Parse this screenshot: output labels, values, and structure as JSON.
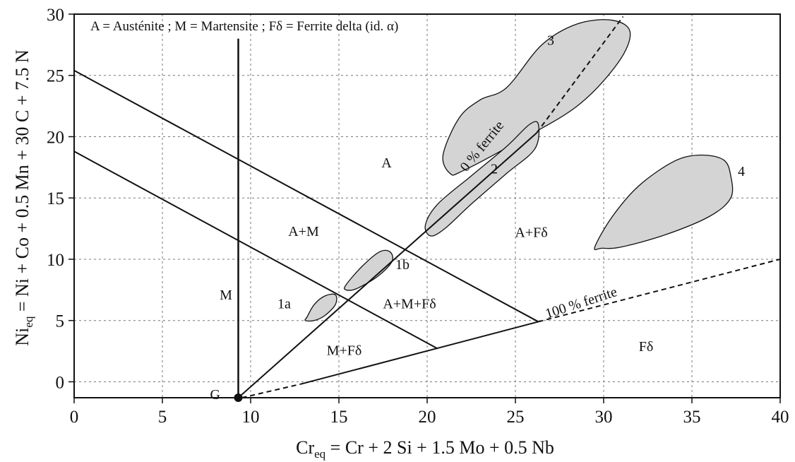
{
  "chart_data": {
    "type": "diagram",
    "title": "",
    "legend_text": "A = Austénite ; M = Martensite ; Fδ = Ferrite delta (id. α)",
    "xlabel": {
      "main": "Cr",
      "sub": "eq",
      "rest": " = Cr + 2 Si + 1.5 Mo + 0.5 Nb"
    },
    "ylabel": {
      "main": "Ni",
      "sub": "eq",
      "rest": " = Ni + Co + 0.5 Mn + 30 C + 7.5 N"
    },
    "xlim": [
      0,
      40
    ],
    "ylim": [
      -1.3,
      30
    ],
    "xticks": [
      0,
      5,
      10,
      15,
      20,
      25,
      30,
      35,
      40
    ],
    "yticks": [
      0,
      5,
      10,
      15,
      20,
      25,
      30
    ],
    "grid": true,
    "boundary_lines": [
      {
        "name": "martensite-limit",
        "style": "solid",
        "points": [
          [
            9.3,
            -1.3
          ],
          [
            9.3,
            28
          ]
        ]
      },
      {
        "name": "upper-diagonal",
        "style": "solid",
        "points": [
          [
            0,
            25.4
          ],
          [
            26.3,
            4.9
          ]
        ]
      },
      {
        "name": "lower-diagonal",
        "style": "solid",
        "points": [
          [
            0,
            18.8
          ],
          [
            20.6,
            2.7
          ]
        ]
      },
      {
        "name": "zero-ferrite",
        "style": "solid",
        "points": [
          [
            9.3,
            -1.3
          ],
          [
            26.2,
            20.3
          ]
        ]
      },
      {
        "name": "zero-ferrite-ext",
        "style": "dashed",
        "points": [
          [
            26.2,
            20.3
          ],
          [
            31.1,
            29.8
          ]
        ]
      },
      {
        "name": "hundred-ferrite",
        "style": "solid",
        "points": [
          [
            12.8,
            -0.2
          ],
          [
            26.3,
            4.9
          ]
        ]
      },
      {
        "name": "hundred-ferrite-ext",
        "style": "dashed",
        "points": [
          [
            26.3,
            4.9
          ],
          [
            40,
            10
          ]
        ]
      },
      {
        "name": "hundred-ferrite-low",
        "style": "dashed",
        "points": [
          [
            9.5,
            -1.3
          ],
          [
            12.8,
            -0.2
          ]
        ]
      }
    ],
    "point": {
      "label": "G",
      "x": 9.3,
      "y": -1.3
    },
    "regions": [
      {
        "label": "A",
        "x": 17.7,
        "y": 17.5
      },
      {
        "label": "A+M",
        "x": 13.0,
        "y": 11.9
      },
      {
        "label": "M",
        "x": 8.6,
        "y": 6.7
      },
      {
        "label": "A+M+Fδ",
        "x": 19.0,
        "y": 6.0
      },
      {
        "label": "M+Fδ",
        "x": 15.3,
        "y": 2.2
      },
      {
        "label": "A+Fδ",
        "x": 25.9,
        "y": 11.8
      },
      {
        "label": "Fδ",
        "x": 32.4,
        "y": 2.5
      }
    ],
    "line_labels": [
      {
        "label": "0 % ferrite",
        "x": 23.3,
        "y": 19.0,
        "angle_deg": -51
      },
      {
        "label": "100 % ferrite",
        "x": 28.8,
        "y": 6.1,
        "angle_deg": -18
      }
    ],
    "zones": [
      {
        "label": "3",
        "label_x": 27.0,
        "label_y": 27.5,
        "outline": [
          [
            24.5,
            24.0
          ],
          [
            26.5,
            27.5
          ],
          [
            28.5,
            29.2
          ],
          [
            30.5,
            29.5
          ],
          [
            31.5,
            28.5
          ],
          [
            30.8,
            26.0
          ],
          [
            28.5,
            22.5
          ],
          [
            25.0,
            19.5
          ],
          [
            22.0,
            17.2
          ],
          [
            21.3,
            17.0
          ],
          [
            20.9,
            18.5
          ],
          [
            21.8,
            21.5
          ],
          [
            23.0,
            23.0
          ]
        ]
      },
      {
        "label": "2",
        "label_x": 23.8,
        "label_y": 17.0,
        "outline": [
          [
            20.6,
            14.5
          ],
          [
            22.5,
            16.8
          ],
          [
            24.5,
            19.2
          ],
          [
            25.8,
            21.0
          ],
          [
            26.3,
            21.0
          ],
          [
            26.1,
            19.0
          ],
          [
            24.5,
            17.0
          ],
          [
            22.5,
            14.5
          ],
          [
            21.0,
            12.5
          ],
          [
            20.2,
            11.9
          ],
          [
            19.9,
            12.8
          ]
        ]
      },
      {
        "label": "4",
        "label_x": 37.8,
        "label_y": 16.8,
        "outline": [
          [
            29.5,
            11.0
          ],
          [
            30.5,
            13.5
          ],
          [
            32.0,
            16.0
          ],
          [
            34.0,
            18.0
          ],
          [
            35.5,
            18.5
          ],
          [
            36.8,
            18.1
          ],
          [
            37.2,
            16.8
          ],
          [
            37.2,
            15.0
          ],
          [
            36.0,
            13.5
          ],
          [
            33.5,
            12.0
          ],
          [
            31.0,
            11.0
          ],
          [
            29.9,
            10.9
          ]
        ]
      },
      {
        "label": "1b",
        "label_x": 18.6,
        "label_y": 9.2,
        "outline": [
          [
            15.4,
            7.9
          ],
          [
            16.3,
            9.4
          ],
          [
            17.3,
            10.6
          ],
          [
            17.9,
            10.6
          ],
          [
            18.0,
            9.8
          ],
          [
            17.2,
            8.6
          ],
          [
            16.0,
            7.6
          ],
          [
            15.4,
            7.5
          ]
        ]
      },
      {
        "label": "1a",
        "label_x": 11.9,
        "label_y": 6.0,
        "outline": [
          [
            13.2,
            5.3
          ],
          [
            13.6,
            6.3
          ],
          [
            14.2,
            7.0
          ],
          [
            14.8,
            7.1
          ],
          [
            14.8,
            6.3
          ],
          [
            14.2,
            5.4
          ],
          [
            13.6,
            5.0
          ],
          [
            13.1,
            5.0
          ]
        ]
      }
    ]
  },
  "colors": {
    "zone_fill": "#d4d4d4",
    "ink": "#111111",
    "grid": "#777777"
  }
}
